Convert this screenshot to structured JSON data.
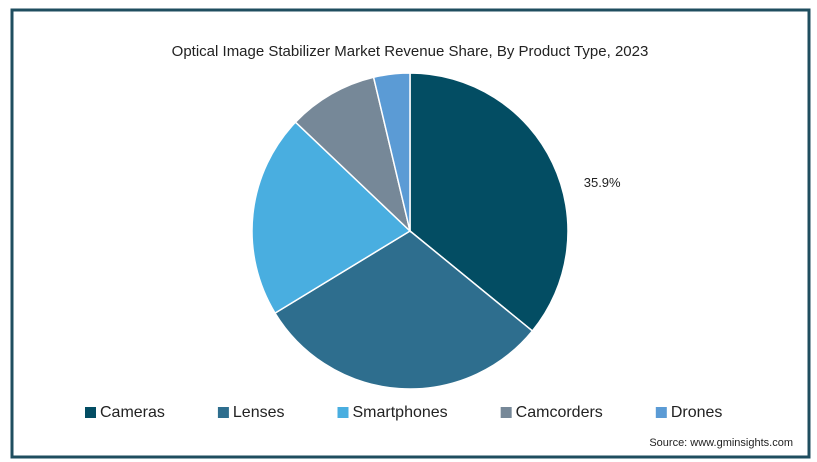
{
  "chart_data": {
    "type": "pie",
    "title": "Optical Image Stabilizer Market Revenue Share, By Product Type, 2023",
    "categories": [
      "Cameras",
      "Lenses",
      "Smartphones",
      "Camcorders",
      "Drones"
    ],
    "values": [
      35.9,
      30.4,
      20.8,
      9.2,
      3.7
    ],
    "value_labels": [
      "35.9%",
      null,
      null,
      null,
      null
    ],
    "colors": [
      "#034d63",
      "#2e6e8e",
      "#49aee0",
      "#768898",
      "#5b9bd5"
    ],
    "legend": "bottom",
    "source": "Source: www.gminsights.com"
  }
}
